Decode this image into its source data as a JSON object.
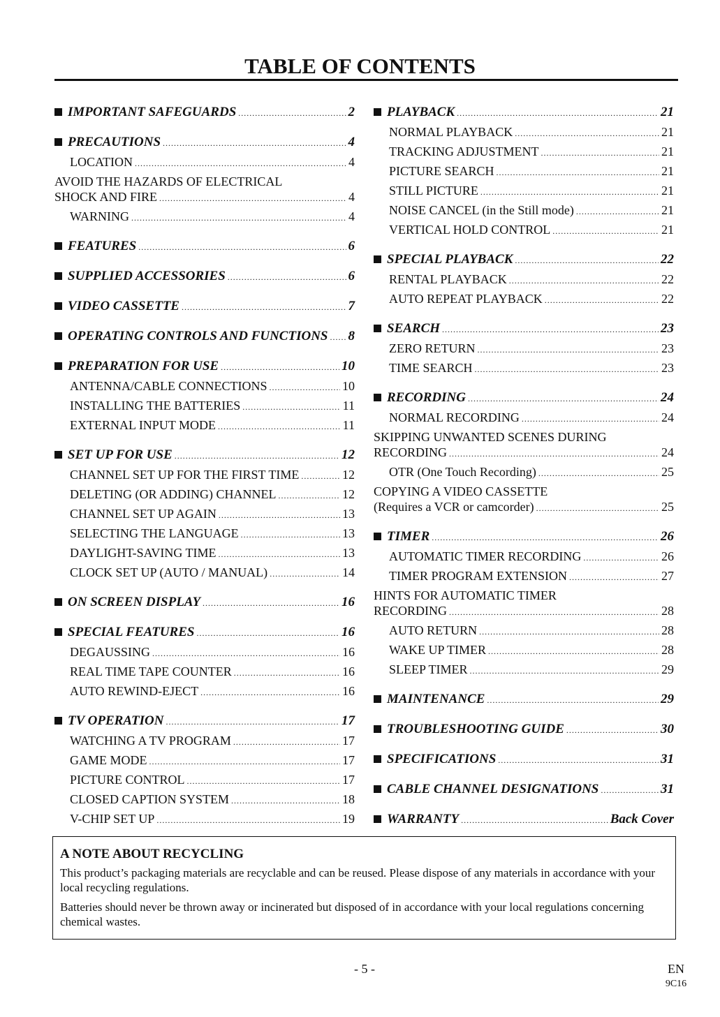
{
  "title": "TABLE OF CONTENTS",
  "columns": [
    [
      {
        "heading": "IMPORTANT SAFEGUARDS",
        "page": 2,
        "items": []
      },
      {
        "heading": "PRECAUTIONS",
        "page": 4,
        "items": [
          {
            "lines": [
              "LOCATION"
            ],
            "page": 4
          },
          {
            "lines": [
              "AVOID THE HAZARDS OF ELECTRICAL",
              "SHOCK AND FIRE"
            ],
            "page": 4
          },
          {
            "lines": [
              "WARNING"
            ],
            "page": 4
          }
        ]
      },
      {
        "heading": "FEATURES",
        "page": 6,
        "items": []
      },
      {
        "heading": "SUPPLIED ACCESSORIES",
        "page": 6,
        "items": []
      },
      {
        "heading": "VIDEO CASSETTE",
        "page": 7,
        "items": []
      },
      {
        "heading": "OPERATING CONTROLS AND FUNCTIONS",
        "page": 8,
        "items": []
      },
      {
        "heading": "PREPARATION FOR USE",
        "page": 10,
        "items": [
          {
            "lines": [
              "ANTENNA/CABLE CONNECTIONS"
            ],
            "page": 10
          },
          {
            "lines": [
              "INSTALLING THE BATTERIES"
            ],
            "page": 11
          },
          {
            "lines": [
              "EXTERNAL INPUT MODE"
            ],
            "page": 11
          }
        ]
      },
      {
        "heading": "SET UP FOR USE",
        "page": 12,
        "items": [
          {
            "lines": [
              "CHANNEL SET UP FOR THE FIRST TIME"
            ],
            "page": 12
          },
          {
            "lines": [
              "DELETING (OR ADDING)  CHANNEL"
            ],
            "page": 12
          },
          {
            "lines": [
              "CHANNEL SET UP AGAIN"
            ],
            "page": 13
          },
          {
            "lines": [
              "SELECTING THE LANGUAGE"
            ],
            "page": 13
          },
          {
            "lines": [
              "DAYLIGHT-SAVING TIME"
            ],
            "page": 13
          },
          {
            "lines": [
              "CLOCK SET UP (AUTO / MANUAL)"
            ],
            "page": 14
          }
        ]
      },
      {
        "heading": "ON SCREEN DISPLAY",
        "page": 16,
        "items": []
      },
      {
        "heading": "SPECIAL FEATURES",
        "page": 16,
        "items": [
          {
            "lines": [
              "DEGAUSSING"
            ],
            "page": 16
          },
          {
            "lines": [
              "REAL TIME TAPE COUNTER"
            ],
            "page": 16
          },
          {
            "lines": [
              "AUTO REWIND-EJECT"
            ],
            "page": 16
          }
        ]
      },
      {
        "heading": "TV OPERATION",
        "page": 17,
        "items": [
          {
            "lines": [
              "WATCHING A TV PROGRAM"
            ],
            "page": 17
          },
          {
            "lines": [
              "GAME MODE"
            ],
            "page": 17
          },
          {
            "lines": [
              "PICTURE CONTROL"
            ],
            "page": 17
          },
          {
            "lines": [
              "CLOSED CAPTION SYSTEM"
            ],
            "page": 18
          },
          {
            "lines": [
              "V-CHIP SET UP"
            ],
            "page": 19
          }
        ]
      }
    ],
    [
      {
        "heading": "PLAYBACK",
        "page": 21,
        "items": [
          {
            "lines": [
              "NORMAL PLAYBACK"
            ],
            "page": 21
          },
          {
            "lines": [
              "TRACKING ADJUSTMENT"
            ],
            "page": 21
          },
          {
            "lines": [
              "PICTURE SEARCH"
            ],
            "page": 21
          },
          {
            "lines": [
              "STILL PICTURE"
            ],
            "page": 21
          },
          {
            "lines": [
              "NOISE CANCEL (in the Still mode)"
            ],
            "page": 21
          },
          {
            "lines": [
              "VERTICAL HOLD CONTROL"
            ],
            "page": 21
          }
        ]
      },
      {
        "heading": "SPECIAL PLAYBACK",
        "page": 22,
        "items": [
          {
            "lines": [
              "RENTAL PLAYBACK"
            ],
            "page": 22
          },
          {
            "lines": [
              "AUTO REPEAT PLAYBACK"
            ],
            "page": 22
          }
        ]
      },
      {
        "heading": "SEARCH",
        "page": 23,
        "items": [
          {
            "lines": [
              "ZERO RETURN"
            ],
            "page": 23
          },
          {
            "lines": [
              "TIME SEARCH"
            ],
            "page": 23
          }
        ]
      },
      {
        "heading": "RECORDING",
        "page": 24,
        "items": [
          {
            "lines": [
              "NORMAL RECORDING"
            ],
            "page": 24
          },
          {
            "lines": [
              "SKIPPING UNWANTED SCENES DURING",
              "RECORDING"
            ],
            "page": 24
          },
          {
            "lines": [
              "OTR (One Touch Recording)"
            ],
            "page": 25
          },
          {
            "lines": [
              "COPYING A VIDEO CASSETTE",
              "(Requires a VCR or camcorder)"
            ],
            "page": 25
          }
        ]
      },
      {
        "heading": "TIMER",
        "page": 26,
        "items": [
          {
            "lines": [
              "AUTOMATIC TIMER RECORDING"
            ],
            "page": 26
          },
          {
            "lines": [
              "TIMER PROGRAM EXTENSION"
            ],
            "page": 27
          },
          {
            "lines": [
              "HINTS FOR AUTOMATIC TIMER",
              "RECORDING"
            ],
            "page": 28
          },
          {
            "lines": [
              "AUTO RETURN"
            ],
            "page": 28
          },
          {
            "lines": [
              "WAKE UP TIMER"
            ],
            "page": 28
          },
          {
            "lines": [
              "SLEEP TIMER"
            ],
            "page": 29
          }
        ]
      },
      {
        "heading": "MAINTENANCE",
        "page": 29,
        "items": []
      },
      {
        "heading": "TROUBLESHOOTING GUIDE",
        "page": 30,
        "items": []
      },
      {
        "heading": "SPECIFICATIONS",
        "page": 31,
        "items": []
      },
      {
        "heading": "CABLE CHANNEL DESIGNATIONS",
        "page": 31,
        "items": []
      },
      {
        "heading": "WARRANTY",
        "page": "Back Cover",
        "items": []
      }
    ]
  ],
  "note": {
    "title": "A NOTE ABOUT RECYCLING",
    "paragraphs": [
      "This product’s packaging materials are recyclable and can be reused. Please dispose of any materials in accordance with your local recycling regulations.",
      "Batteries should never be thrown away or incinerated but disposed of in accordance with your local regulations concerning chemical wastes."
    ]
  },
  "footer": {
    "page": "- 5 -",
    "lang": "EN",
    "code": "9C16"
  }
}
